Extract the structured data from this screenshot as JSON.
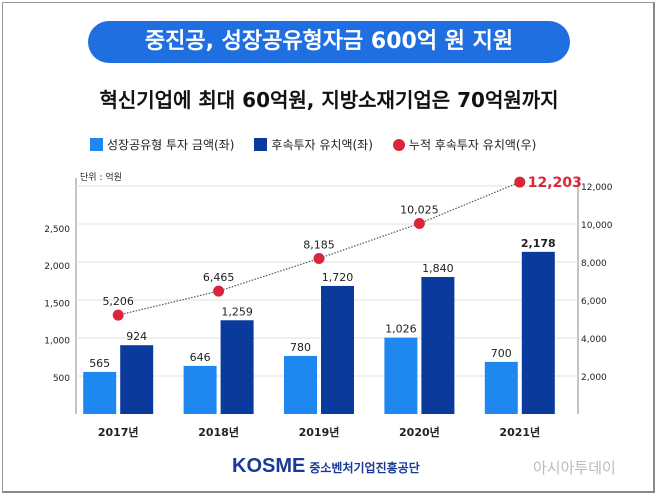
{
  "title": "중진공, 성장공유형자금 600억 원 지원",
  "subtitle": "혁신기업에 최대 60억원, 지방소재기업은 70억원까지",
  "unit": "단위 : 억원",
  "logo": {
    "brand": "KOSME",
    "org": "중소벤처기업진흥공단"
  },
  "watermark": "아시아투데이",
  "colors": {
    "series1": "#1e88f0",
    "series2": "#0a3a9c",
    "series3": "#d9263a",
    "title_bg": "#1f6fe0"
  },
  "chart_data": {
    "type": "bar+line",
    "categories": [
      "2017년",
      "2018년",
      "2019년",
      "2020년",
      "2021년"
    ],
    "series": [
      {
        "name": "성장공유형 투자 금액(좌)",
        "type": "bar",
        "axis": "left",
        "values": [
          565,
          646,
          780,
          1026,
          700
        ],
        "labels": [
          "565",
          "646",
          "780",
          "1,026",
          "700"
        ]
      },
      {
        "name": "후속투자 유치액(좌)",
        "type": "bar",
        "axis": "left",
        "values": [
          924,
          1259,
          1720,
          1840,
          2178
        ],
        "labels": [
          "924",
          "1,259",
          "1,720",
          "1,840",
          "2,178"
        ]
      },
      {
        "name": "누적 후속투자 유치액(우)",
        "type": "line",
        "axis": "right",
        "values": [
          5206,
          6465,
          8185,
          10025,
          12203
        ],
        "labels": [
          "5,206",
          "6,465",
          "8,185",
          "10,025",
          "12,203"
        ]
      }
    ],
    "left_axis": {
      "ticks": [
        "500",
        "1,000",
        "1,500",
        "2,000",
        "2,500"
      ],
      "tick_values": [
        500,
        1000,
        1500,
        2000,
        2500
      ],
      "range": [
        0,
        3170
      ]
    },
    "right_axis": {
      "ticks": [
        "2,000",
        "4,000",
        "6,000",
        "8,000",
        "10,000",
        "12,000"
      ],
      "tick_values": [
        2000,
        4000,
        6000,
        8000,
        10000,
        12000
      ],
      "range": [
        0,
        12420
      ]
    },
    "legend": "top"
  }
}
